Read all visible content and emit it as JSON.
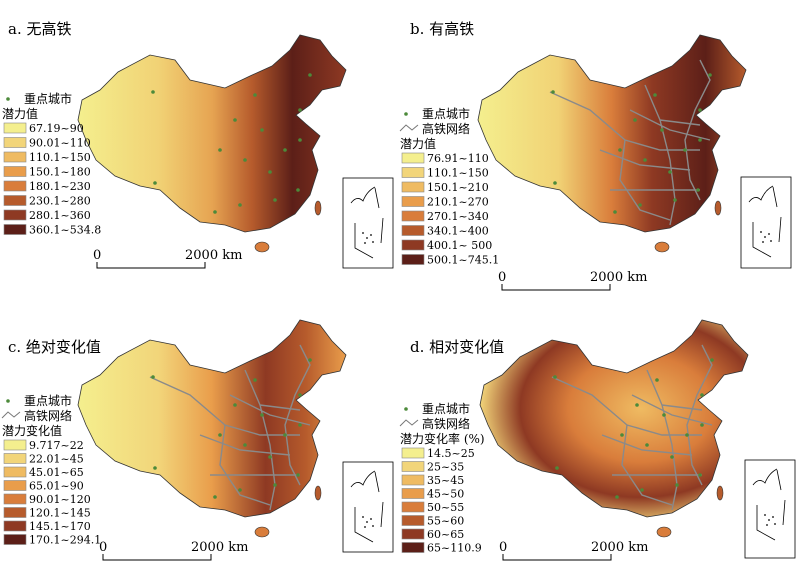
{
  "panels": [
    {
      "title": "a. 无高铁",
      "legend_title": "潜力值",
      "show_rail": false,
      "classes": [
        "67.19~90",
        "90.01~110",
        "110.1~150",
        "150.1~180",
        "180.1~230",
        "230.1~280",
        "280.1~360",
        "360.1~534.8"
      ]
    },
    {
      "title": "b. 有高铁",
      "legend_title": "潜力值",
      "show_rail": true,
      "classes": [
        "76.91~110",
        "110.1~150",
        "150.1~210",
        "210.1~270",
        "270.1~340",
        "340.1~400",
        "400.1~ 500",
        "500.1~745.1"
      ]
    },
    {
      "title": "c. 绝对变化值",
      "legend_title": "潜力变化值",
      "show_rail": true,
      "classes": [
        "9.717~22",
        "22.01~45",
        "45.01~65",
        "65.01~90",
        "90.01~120",
        "120.1~145",
        "145.1~170",
        "170.1~294.1"
      ]
    },
    {
      "title": "d. 相对变化值",
      "legend_title": "潜力变化率 (%)",
      "show_rail": true,
      "classes": [
        "14.5~25",
        "25~35",
        "35~45",
        "45~50",
        "50~55",
        "55~60",
        "60~65",
        "65~110.9"
      ]
    }
  ],
  "legend": {
    "city_label": "重点城市",
    "rail_label": "高铁网络"
  },
  "scale": {
    "start": "0",
    "end": "2000 km"
  },
  "colors": [
    "#f4ef8e",
    "#f2d57a",
    "#efbb62",
    "#e99d4b",
    "#d97d3b",
    "#b65b2c",
    "#8e3923",
    "#5c1f18"
  ],
  "city_color": "#4c8a3a",
  "rail_color": "#8a8a8a"
}
